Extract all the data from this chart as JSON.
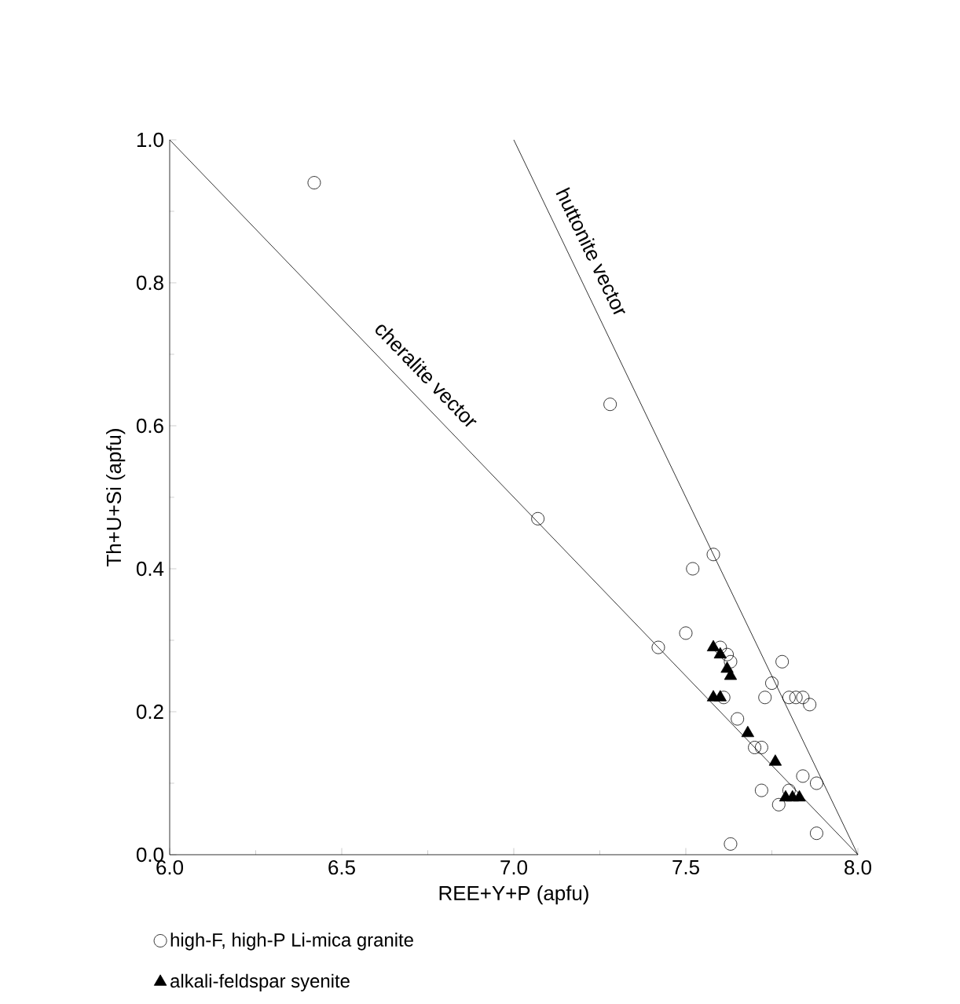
{
  "chart_data": {
    "type": "scatter",
    "xlabel": "REE+Y+P (apfu)",
    "ylabel": "Th+U+Si (apfu)",
    "xlim": [
      6.0,
      8.0
    ],
    "ylim": [
      0.0,
      1.0
    ],
    "xticks": [
      {
        "value": 6.0,
        "label": "6.0"
      },
      {
        "value": 6.5,
        "label": "6.5"
      },
      {
        "value": 7.0,
        "label": "7.0"
      },
      {
        "value": 7.5,
        "label": "7.5"
      },
      {
        "value": 8.0,
        "label": "8.0"
      }
    ],
    "yticks": [
      {
        "value": 0.0,
        "label": "0.0"
      },
      {
        "value": 0.2,
        "label": "0.2"
      },
      {
        "value": 0.4,
        "label": "0.4"
      },
      {
        "value": 0.6,
        "label": "0.6"
      },
      {
        "value": 0.8,
        "label": "0.8"
      },
      {
        "value": 1.0,
        "label": "1.0"
      }
    ],
    "legend": "bottom",
    "grid": false,
    "series": [
      {
        "name": "high-F, high-P Li-mica granite",
        "color": "#000000",
        "marker": "circle",
        "x": [
          6.42,
          7.28,
          7.07,
          7.42,
          7.5,
          7.52,
          7.58,
          7.6,
          7.62,
          7.63,
          7.61,
          7.65,
          7.7,
          7.72,
          7.72,
          7.73,
          7.75,
          7.78,
          7.8,
          7.82,
          7.84,
          7.86,
          7.77,
          7.8,
          7.84,
          7.88,
          7.88,
          7.63
        ],
        "values": [
          0.94,
          0.63,
          0.47,
          0.29,
          0.31,
          0.4,
          0.42,
          0.29,
          0.28,
          0.27,
          0.22,
          0.19,
          0.15,
          0.15,
          0.09,
          0.22,
          0.24,
          0.27,
          0.22,
          0.22,
          0.22,
          0.21,
          0.07,
          0.09,
          0.11,
          0.1,
          0.03,
          0.015
        ]
      },
      {
        "name": "alkali-feldspar syenite",
        "color": "#000000",
        "marker": "triangle",
        "x": [
          7.58,
          7.6,
          7.62,
          7.63,
          7.58,
          7.6,
          7.68,
          7.76,
          7.79,
          7.81,
          7.83
        ],
        "values": [
          0.29,
          0.28,
          0.26,
          0.25,
          0.22,
          0.22,
          0.17,
          0.13,
          0.08,
          0.08,
          0.08
        ]
      },
      {
        "name": "cheralite vector",
        "type": "line",
        "color": "#000000",
        "marker": "none",
        "x": [
          6.0,
          8.0
        ],
        "values": [
          1.0,
          0.0
        ]
      },
      {
        "name": "huttonite vector",
        "type": "line",
        "color": "#000000",
        "marker": "none",
        "x": [
          7.0,
          8.0
        ],
        "values": [
          1.0,
          0.0
        ]
      }
    ]
  }
}
